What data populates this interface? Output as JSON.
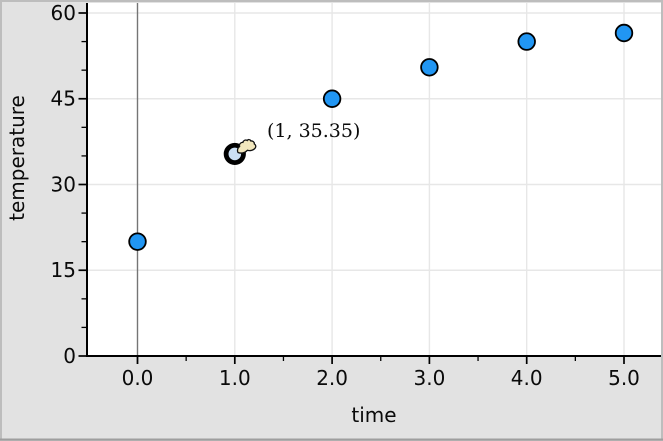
{
  "window": {
    "background": "#e2e2e2",
    "border_color": "#bdbdbd",
    "border_bottom_color": "#9e9e9e"
  },
  "colors": {
    "plot_background": "#ffffff",
    "gridline": "#e7e7e7",
    "zero_line": "#757575",
    "axis": "#000000",
    "tick": "#000000",
    "point_fill": "#2196f3",
    "point_stroke": "#000000",
    "selected_point_fill": "#cbe0f5",
    "selected_point_ring": "#000000",
    "cursor_fill": "#f2e7bd",
    "cursor_stroke": "#111111",
    "text": "#0a0a0a"
  },
  "cursor": {
    "type": "grab-hand",
    "attached_to_point_index": 1
  },
  "chart_data": {
    "type": "scatter",
    "title": "",
    "xlabel": "time",
    "ylabel": "temperature",
    "x": [
      0,
      1,
      2,
      3,
      4,
      5
    ],
    "y": [
      20,
      35.35,
      45,
      50.5,
      55,
      56.5
    ],
    "xlim": [
      -0.53,
      5.4
    ],
    "ylim": [
      0,
      61.7
    ],
    "grid": true,
    "legend_position": "none",
    "x_ticks": {
      "majors": [
        0,
        1,
        2,
        3,
        4,
        5
      ],
      "labels": [
        "0.0",
        "1.0",
        "2.0",
        "3.0",
        "4.0",
        "5.0"
      ],
      "minors": [
        0.5,
        1.5,
        2.5,
        3.5,
        4.5
      ]
    },
    "y_ticks": {
      "majors": [
        0,
        15,
        30,
        45,
        60
      ],
      "labels": [
        "0",
        "15",
        "30",
        "45",
        "60"
      ],
      "minors": [
        5,
        10,
        20,
        25,
        35,
        40,
        50,
        55
      ]
    },
    "selected_point": {
      "index": 1,
      "x": 1,
      "y": 35.35,
      "label": "(1, 35.35)"
    }
  }
}
